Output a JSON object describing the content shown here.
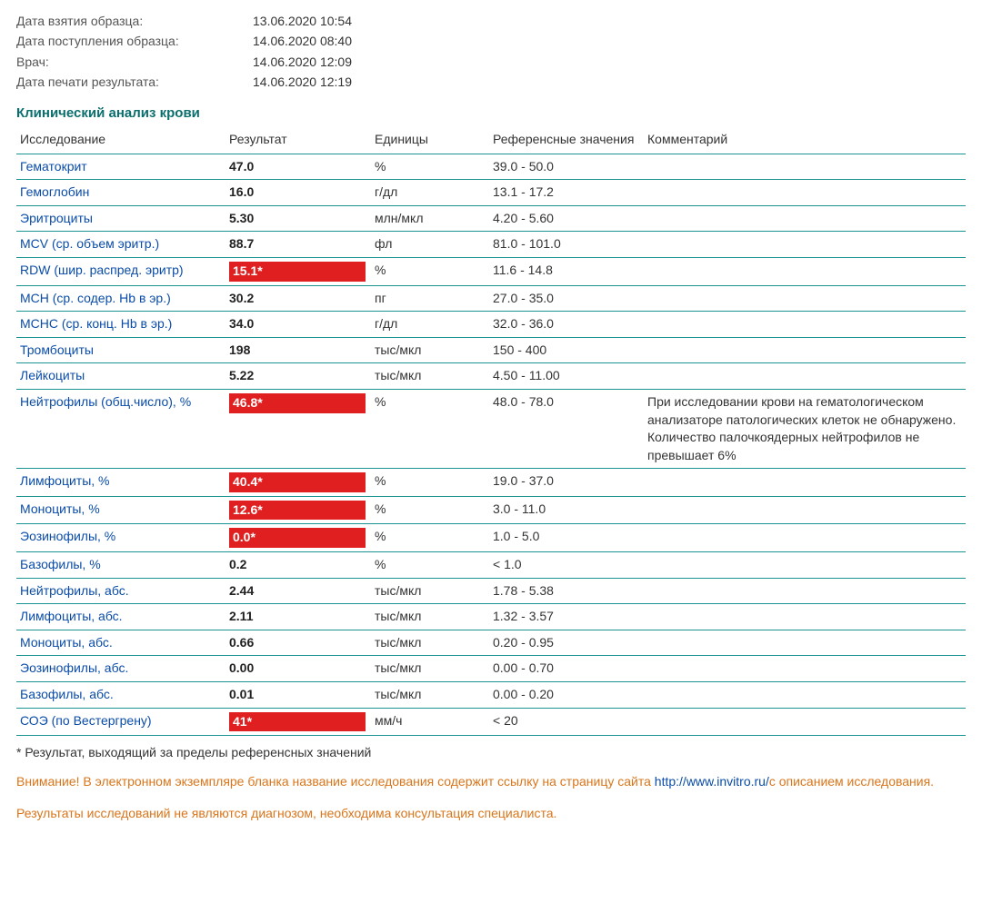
{
  "meta": [
    {
      "label": "Дата взятия образца:",
      "value": "13.06.2020 10:54"
    },
    {
      "label": "Дата поступления образца:",
      "value": "14.06.2020 08:40"
    },
    {
      "label": "Врач:",
      "value": "14.06.2020 12:09"
    },
    {
      "label": "Дата печати результата:",
      "value": "14.06.2020 12:19"
    }
  ],
  "section_title": "Клинический анализ крови",
  "columns": {
    "test": "Исследование",
    "result": "Результат",
    "units": "Единицы",
    "ref": "Референсные значения",
    "comment": "Комментарий"
  },
  "rows": [
    {
      "test": "Гематокрит",
      "result": "47.0",
      "abn": false,
      "units": "%",
      "ref": "39.0 - 50.0",
      "comment": ""
    },
    {
      "test": "Гемоглобин",
      "result": "16.0",
      "abn": false,
      "units": "г/дл",
      "ref": "13.1 - 17.2",
      "comment": ""
    },
    {
      "test": "Эритроциты",
      "result": "5.30",
      "abn": false,
      "units": "млн/мкл",
      "ref": "4.20 - 5.60",
      "comment": ""
    },
    {
      "test": "MCV (ср. объем эритр.)",
      "result": "88.7",
      "abn": false,
      "units": "фл",
      "ref": "81.0 - 101.0",
      "comment": ""
    },
    {
      "test": "RDW (шир. распред. эритр)",
      "result": "15.1*",
      "abn": true,
      "units": "%",
      "ref": "11.6 - 14.8",
      "comment": ""
    },
    {
      "test": "MCH (ср. содер. Hb в эр.)",
      "result": "30.2",
      "abn": false,
      "units": "пг",
      "ref": "27.0 - 35.0",
      "comment": ""
    },
    {
      "test": "MCHC (ср. конц. Hb в эр.)",
      "result": "34.0",
      "abn": false,
      "units": "г/дл",
      "ref": "32.0 - 36.0",
      "comment": ""
    },
    {
      "test": "Тромбоциты",
      "result": "198",
      "abn": false,
      "units": "тыс/мкл",
      "ref": "150 - 400",
      "comment": ""
    },
    {
      "test": "Лейкоциты",
      "result": "5.22",
      "abn": false,
      "units": "тыс/мкл",
      "ref": "4.50 - 11.00",
      "comment": ""
    },
    {
      "test": "Нейтрофилы (общ.число), %",
      "result": "46.8*",
      "abn": true,
      "units": "%",
      "ref": "48.0 - 78.0",
      "comment": "При исследовании крови на гематологическом анализаторе патологических клеток не обнаружено. Количество палочкоядерных нейтрофилов не превышает 6%"
    },
    {
      "test": "Лимфоциты, %",
      "result": "40.4*",
      "abn": true,
      "units": "%",
      "ref": "19.0 - 37.0",
      "comment": ""
    },
    {
      "test": "Моноциты, %",
      "result": "12.6*",
      "abn": true,
      "units": "%",
      "ref": "3.0 - 11.0",
      "comment": ""
    },
    {
      "test": "Эозинофилы, %",
      "result": "0.0*",
      "abn": true,
      "units": "%",
      "ref": "1.0 - 5.0",
      "comment": ""
    },
    {
      "test": "Базофилы, %",
      "result": "0.2",
      "abn": false,
      "units": "%",
      "ref": "< 1.0",
      "comment": ""
    },
    {
      "test": "Нейтрофилы, абс.",
      "result": "2.44",
      "abn": false,
      "units": "тыс/мкл",
      "ref": "1.78 - 5.38",
      "comment": ""
    },
    {
      "test": "Лимфоциты, абс.",
      "result": "2.11",
      "abn": false,
      "units": "тыс/мкл",
      "ref": "1.32 - 3.57",
      "comment": ""
    },
    {
      "test": "Моноциты, абс.",
      "result": "0.66",
      "abn": false,
      "units": "тыс/мкл",
      "ref": "0.20 - 0.95",
      "comment": ""
    },
    {
      "test": "Эозинофилы, абс.",
      "result": "0.00",
      "abn": false,
      "units": "тыс/мкл",
      "ref": "0.00 - 0.70",
      "comment": ""
    },
    {
      "test": "Базофилы, абс.",
      "result": "0.01",
      "abn": false,
      "units": "тыс/мкл",
      "ref": "0.00 - 0.20",
      "comment": ""
    },
    {
      "test": "СОЭ (по Вестергрену)",
      "result": "41*",
      "abn": true,
      "units": "мм/ч",
      "ref": "< 20",
      "comment": ""
    }
  ],
  "footnote": "* Результат, выходящий за пределы референсных значений",
  "warning": {
    "label": "Внимание!",
    "text1": " В электронном экземпляре бланка название исследования содержит ссылку на страницу сайта ",
    "link": "http://www.invitro.ru/",
    "text2": "с описанием исследования."
  },
  "disclaimer": "Результаты исследований не являются диагнозом, необходима консультация специалиста.",
  "colors": {
    "teal": "#1a9393",
    "title": "#0a6e6e",
    "link": "#0a4ca8",
    "abn_bg": "#e02020",
    "warn": "#d9751a"
  }
}
